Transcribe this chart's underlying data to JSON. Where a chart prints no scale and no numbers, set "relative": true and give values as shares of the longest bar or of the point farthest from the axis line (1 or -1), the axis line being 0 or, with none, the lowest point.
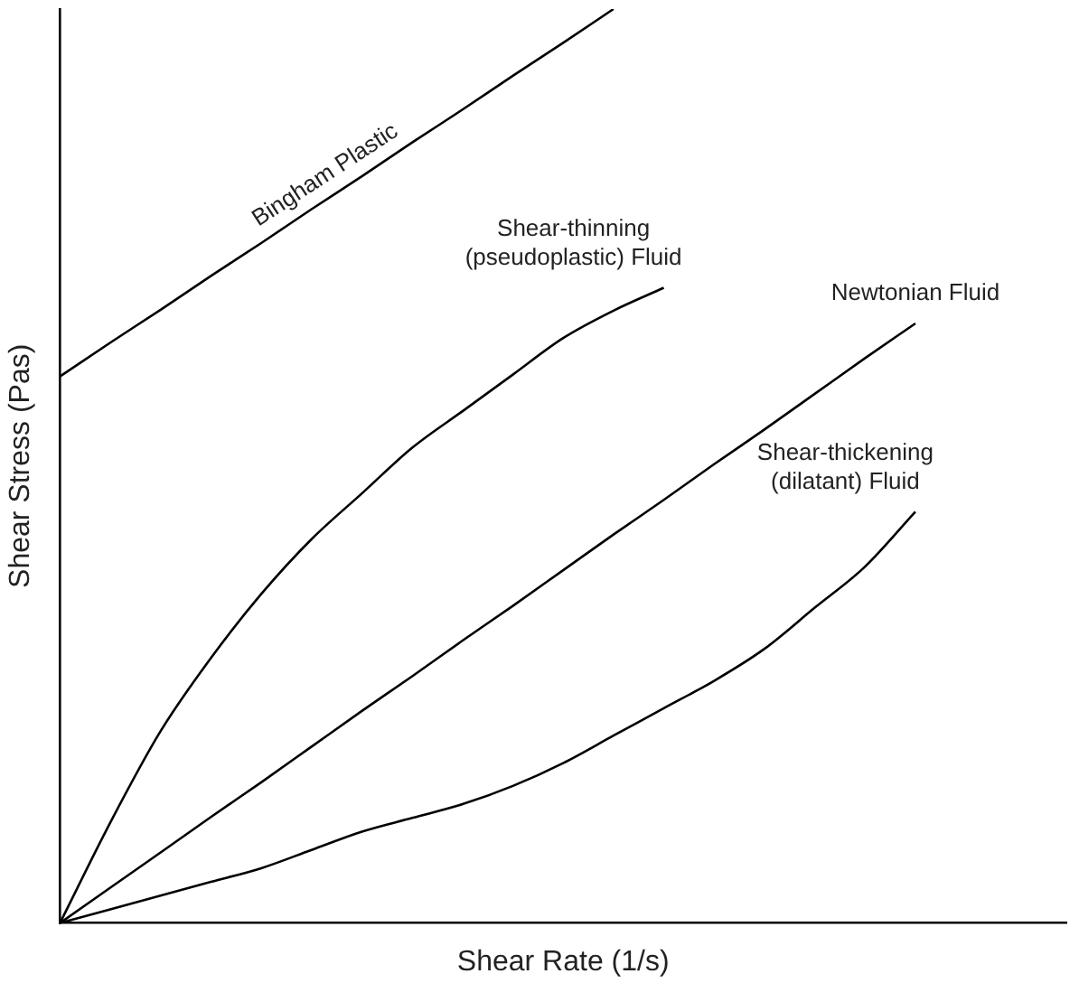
{
  "chart_data": {
    "type": "line",
    "relative": true,
    "xlabel": "Shear Rate (1/s)",
    "ylabel": "Shear Stress (Pas)",
    "categories": [
      null,
      null,
      null,
      null,
      null,
      null,
      null,
      null,
      null,
      null,
      null,
      null,
      null,
      null,
      null,
      null,
      null,
      null,
      null,
      null,
      null
    ],
    "grid": false,
    "legend": false,
    "marker": "none",
    "line_style": "solid",
    "series": [
      {
        "name": "Bingham Plastic",
        "color": "#000000",
        "values": [
          0.598,
          0.635,
          0.671,
          0.708,
          0.744,
          0.781,
          0.817,
          0.854,
          0.89,
          0.927,
          0.963,
          1.0,
          null,
          null,
          null,
          null,
          null,
          null,
          null,
          null,
          null
        ]
      },
      {
        "name": "Shear-thinning\n(pseudoplastic) Fluid",
        "color": "#000000",
        "values": [
          0,
          0.11,
          0.21,
          0.29,
          0.36,
          0.42,
          0.47,
          0.52,
          0.56,
          0.6,
          0.64,
          0.67,
          0.695,
          null,
          null,
          null,
          null,
          null,
          null,
          null,
          null
        ]
      },
      {
        "name": "Newtonian Fluid",
        "color": "#000000",
        "values": [
          0,
          0.0386,
          0.0772,
          0.116,
          0.154,
          0.193,
          0.232,
          0.27,
          0.309,
          0.347,
          0.386,
          0.425,
          0.463,
          0.502,
          0.54,
          0.579,
          0.618,
          0.656,
          null,
          null,
          null
        ]
      },
      {
        "name": "Shear-thickening\n(dilatant) Fluid",
        "color": "#000000",
        "values": [
          0,
          0.015,
          0.03,
          0.045,
          0.06,
          0.08,
          0.1,
          0.115,
          0.13,
          0.15,
          0.175,
          0.205,
          0.235,
          0.265,
          0.3,
          0.345,
          0.39,
          0.45,
          null,
          null,
          null
        ]
      }
    ]
  }
}
